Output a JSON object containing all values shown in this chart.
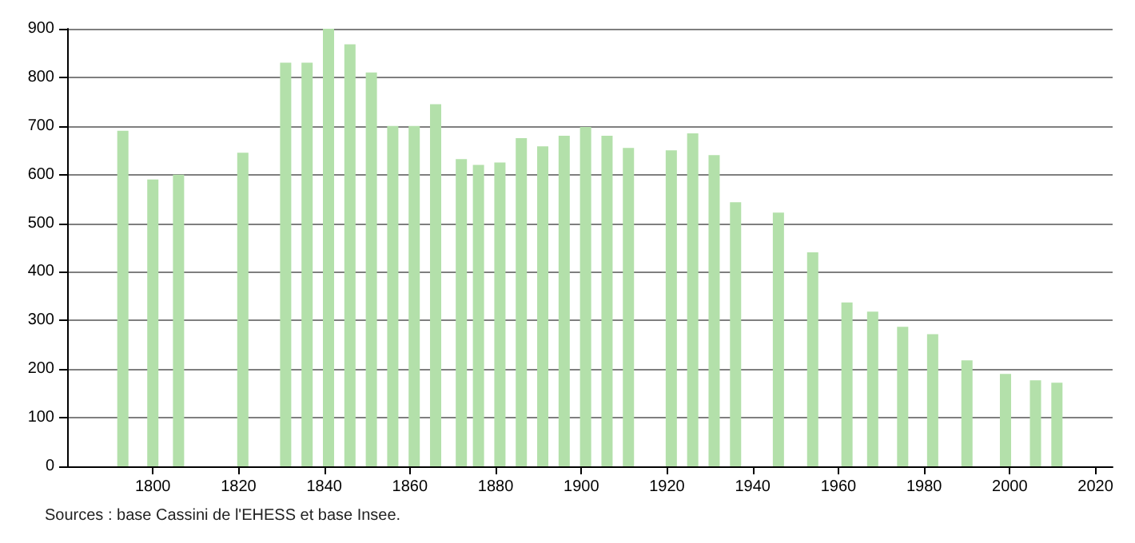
{
  "chart_data": {
    "type": "bar",
    "x": [
      1793,
      1800,
      1806,
      1821,
      1831,
      1836,
      1841,
      1846,
      1851,
      1856,
      1861,
      1866,
      1872,
      1876,
      1881,
      1886,
      1891,
      1896,
      1901,
      1906,
      1911,
      1921,
      1926,
      1931,
      1936,
      1946,
      1954,
      1962,
      1968,
      1975,
      1982,
      1990,
      1999,
      2006,
      2011
    ],
    "values": [
      690,
      590,
      600,
      645,
      830,
      830,
      900,
      868,
      810,
      700,
      700,
      745,
      632,
      620,
      625,
      675,
      658,
      680,
      698,
      680,
      655,
      650,
      685,
      640,
      543,
      522,
      440,
      337,
      318,
      287,
      272,
      218,
      190,
      177,
      172
    ],
    "color": "#b3e0aa",
    "xlim": [
      1780,
      2024
    ],
    "xticks": [
      1800,
      1820,
      1840,
      1860,
      1880,
      1900,
      1920,
      1940,
      1960,
      1980,
      2000,
      2020
    ],
    "ylim": [
      0,
      900
    ],
    "yticks": [
      0,
      100,
      200,
      300,
      400,
      500,
      600,
      700,
      800,
      900
    ],
    "grid": "y",
    "annotations": [
      "Sources : base Cassini de l'EHESS et base Insee."
    ]
  }
}
